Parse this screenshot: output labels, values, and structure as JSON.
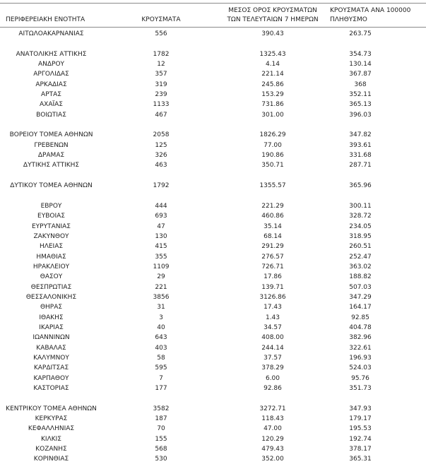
{
  "page": {
    "background": "#ffffff",
    "border_color": "#8a8a8a",
    "text_color": "#1f1f1f"
  },
  "table": {
    "headers": {
      "region": "ΠΕΡΙΦΕΡΕΙΑΚΗ ΕΝΟΤΗΤΑ",
      "cases": "ΚΡΟΥΣΜΑΤΑ",
      "avg7_line1": "ΜΕΣΟΣ ΟΡΟΣ ΚΡΟΥΣΜΑΤΩΝ",
      "avg7_line2": "ΤΩΝ ΤΕΛΕΥΤΑΙΩΝ 7 ΗΜΕΡΩΝ",
      "per100k_line1": "ΚΡΟΥΣΜΑΤΑ ΑΝΑ 100000",
      "per100k_line2": "ΠΛΗΘΥΣΜΟ"
    },
    "rows": [
      {
        "region": "ΑΙΤΩΛΟΑΚΑΡΝΑΝΙΑΣ",
        "cases": "556",
        "avg7": "390.43",
        "per100k": "263.75"
      },
      {
        "spacer": true
      },
      {
        "region": "ΑΝΑΤΟΛΙΚΗΣ ΑΤΤΙΚΗΣ",
        "cases": "1782",
        "avg7": "1325.43",
        "per100k": "354.73"
      },
      {
        "region": "ΑΝΔΡΟΥ",
        "cases": "12",
        "avg7": "4.14",
        "per100k": "130.14"
      },
      {
        "region": "ΑΡΓΟΛΙΔΑΣ",
        "cases": "357",
        "avg7": "221.14",
        "per100k": "367.87"
      },
      {
        "region": "ΑΡΚΑΔΙΑΣ",
        "cases": "319",
        "avg7": "245.86",
        "per100k": "368"
      },
      {
        "region": "ΑΡΤΑΣ",
        "cases": "239",
        "avg7": "153.29",
        "per100k": "352.11"
      },
      {
        "region": "ΑΧΑΪΑΣ",
        "cases": "1133",
        "avg7": "731.86",
        "per100k": "365.13"
      },
      {
        "region": "ΒΟΙΩΤΙΑΣ",
        "cases": "467",
        "avg7": "301.00",
        "per100k": "396.03"
      },
      {
        "spacer": true
      },
      {
        "region": "ΒΟΡΕΙΟΥ ΤΟΜΕΑ ΑΘΗΝΩΝ",
        "cases": "2058",
        "avg7": "1826.29",
        "per100k": "347.82"
      },
      {
        "region": "ΓΡΕΒΕΝΩΝ",
        "cases": "125",
        "avg7": "77.00",
        "per100k": "393.61"
      },
      {
        "region": "ΔΡΑΜΑΣ",
        "cases": "326",
        "avg7": "190.86",
        "per100k": "331.68"
      },
      {
        "region": "ΔΥΤΙΚΗΣ ΑΤΤΙΚΗΣ",
        "cases": "463",
        "avg7": "350.71",
        "per100k": "287.71"
      },
      {
        "spacer": true
      },
      {
        "region": "ΔΥΤΙΚΟΥ ΤΟΜΕΑ ΑΘΗΝΩΝ",
        "cases": "1792",
        "avg7": "1355.57",
        "per100k": "365.96"
      },
      {
        "spacer": true
      },
      {
        "region": "ΕΒΡΟΥ",
        "cases": "444",
        "avg7": "221.29",
        "per100k": "300.11"
      },
      {
        "region": "ΕΥΒΟΙΑΣ",
        "cases": "693",
        "avg7": "460.86",
        "per100k": "328.72"
      },
      {
        "region": "ΕΥΡΥΤΑΝΙΑΣ",
        "cases": "47",
        "avg7": "35.14",
        "per100k": "234.05"
      },
      {
        "region": "ΖΑΚΥΝΘΟΥ",
        "cases": "130",
        "avg7": "68.14",
        "per100k": "318.95"
      },
      {
        "region": "ΗΛΕΙΑΣ",
        "cases": "415",
        "avg7": "291.29",
        "per100k": "260.51"
      },
      {
        "region": "ΗΜΑΘΙΑΣ",
        "cases": "355",
        "avg7": "276.57",
        "per100k": "252.47"
      },
      {
        "region": "ΗΡΑΚΛΕΙΟΥ",
        "cases": "1109",
        "avg7": "726.71",
        "per100k": "363.02"
      },
      {
        "region": "ΘΑΣΟΥ",
        "cases": "29",
        "avg7": "17.86",
        "per100k": "188.82"
      },
      {
        "region": "ΘΕΣΠΡΩΤΙΑΣ",
        "cases": "221",
        "avg7": "139.71",
        "per100k": "507.03"
      },
      {
        "region": "ΘΕΣΣΑΛΟΝΙΚΗΣ",
        "cases": "3856",
        "avg7": "3126.86",
        "per100k": "347.29"
      },
      {
        "region": "ΘΗΡΑΣ",
        "cases": "31",
        "avg7": "17.43",
        "per100k": "164.17"
      },
      {
        "region": "ΙΘΑΚΗΣ",
        "cases": "3",
        "avg7": "1.43",
        "per100k": "92.85"
      },
      {
        "region": "ΙΚΑΡΙΑΣ",
        "cases": "40",
        "avg7": "34.57",
        "per100k": "404.78"
      },
      {
        "region": "ΙΩΑΝΝΙΝΩΝ",
        "cases": "643",
        "avg7": "408.00",
        "per100k": "382.96"
      },
      {
        "region": "ΚΑΒΑΛΑΣ",
        "cases": "403",
        "avg7": "244.14",
        "per100k": "322.61"
      },
      {
        "region": "ΚΑΛΥΜΝΟΥ",
        "cases": "58",
        "avg7": "37.57",
        "per100k": "196.93"
      },
      {
        "region": "ΚΑΡΔΙΤΣΑΣ",
        "cases": "595",
        "avg7": "378.29",
        "per100k": "524.03"
      },
      {
        "region": "ΚΑΡΠΑΘΟΥ",
        "cases": "7",
        "avg7": "6.00",
        "per100k": "95.76"
      },
      {
        "region": "ΚΑΣΤΟΡΙΑΣ",
        "cases": "177",
        "avg7": "92.86",
        "per100k": "351.73"
      },
      {
        "spacer": true
      },
      {
        "region": "ΚΕΝΤΡΙΚΟΥ ΤΟΜΕΑ ΑΘΗΝΩΝ",
        "cases": "3582",
        "avg7": "3272.71",
        "per100k": "347.93"
      },
      {
        "region": "ΚΕΡΚΥΡΑΣ",
        "cases": "187",
        "avg7": "118.43",
        "per100k": "179.17"
      },
      {
        "region": "ΚΕΦΑΛΛΗΝΙΑΣ",
        "cases": "70",
        "avg7": "47.00",
        "per100k": "195.53"
      },
      {
        "region": "ΚΙΛΚΙΣ",
        "cases": "155",
        "avg7": "120.29",
        "per100k": "192.74"
      },
      {
        "region": "ΚΟΖΑΝΗΣ",
        "cases": "568",
        "avg7": "479.43",
        "per100k": "378.17"
      },
      {
        "region": "ΚΟΡΙΝΘΙΑΣ",
        "cases": "530",
        "avg7": "352.00",
        "per100k": "365.31"
      }
    ]
  }
}
